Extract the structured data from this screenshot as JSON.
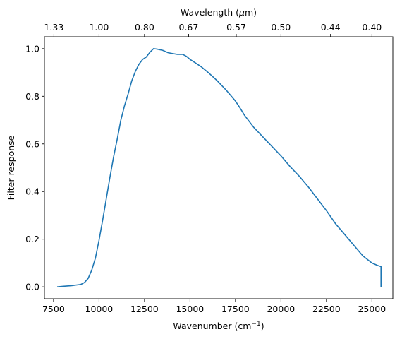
{
  "chart_data": {
    "type": "line",
    "xlabel": "Wavenumber (cm",
    "xlabel_sup": "−1",
    "xlabel_suffix": ")",
    "ylabel": "Filter response",
    "top_xlabel_prefix": "Wavelength (",
    "top_xlabel_mu": "μ",
    "top_xlabel_suffix": "m)",
    "xlim": [
      7000,
      26150
    ],
    "ylim": [
      -0.05,
      1.05
    ],
    "xticks": [
      7500,
      10000,
      12500,
      15000,
      17500,
      20000,
      22500,
      25000
    ],
    "xtick_labels": [
      "7500",
      "10000",
      "12500",
      "15000",
      "17500",
      "20000",
      "22500",
      "25000"
    ],
    "yticks": [
      0.0,
      0.2,
      0.4,
      0.6,
      0.8,
      1.0
    ],
    "ytick_labels": [
      "0.0",
      "0.2",
      "0.4",
      "0.6",
      "0.8",
      "1.0"
    ],
    "top_ticks": [
      7519,
      10000,
      12500,
      14925,
      17544,
      20000,
      22727,
      25000
    ],
    "top_tick_labels": [
      "1.33",
      "1.00",
      "0.80",
      "0.67",
      "0.57",
      "0.50",
      "0.44",
      "0.40"
    ],
    "line_color": "#1f77b4",
    "x": [
      7700,
      8000,
      8500,
      9000,
      9200,
      9400,
      9600,
      9800,
      10000,
      10200,
      10400,
      10600,
      10800,
      11000,
      11200,
      11400,
      11600,
      11800,
      12000,
      12200,
      12400,
      12600,
      12800,
      13000,
      13200,
      13500,
      13800,
      14000,
      14300,
      14600,
      14800,
      15000,
      15300,
      15600,
      16000,
      16500,
      17000,
      17500,
      17800,
      18000,
      18500,
      19000,
      19500,
      20000,
      20500,
      21000,
      21500,
      22000,
      22500,
      23000,
      23500,
      24000,
      24500,
      25000,
      25300,
      25500,
      25500
    ],
    "y": [
      0.0,
      0.002,
      0.005,
      0.01,
      0.018,
      0.035,
      0.07,
      0.12,
      0.195,
      0.28,
      0.37,
      0.46,
      0.545,
      0.62,
      0.7,
      0.76,
      0.81,
      0.865,
      0.905,
      0.935,
      0.955,
      0.965,
      0.985,
      1.0,
      0.998,
      0.993,
      0.983,
      0.98,
      0.976,
      0.976,
      0.968,
      0.955,
      0.94,
      0.925,
      0.9,
      0.865,
      0.825,
      0.78,
      0.745,
      0.72,
      0.67,
      0.63,
      0.59,
      0.55,
      0.505,
      0.465,
      0.42,
      0.37,
      0.32,
      0.265,
      0.22,
      0.175,
      0.13,
      0.1,
      0.09,
      0.085,
      0.0
    ]
  }
}
